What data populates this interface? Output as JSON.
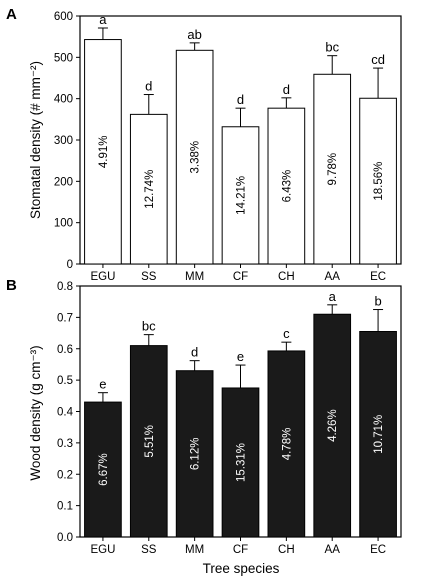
{
  "chart_data": [
    {
      "panel": "A",
      "type": "bar",
      "categories": [
        "EGU",
        "SS",
        "MM",
        "CF",
        "CH",
        "AA",
        "EC"
      ],
      "values": [
        543,
        362,
        517,
        332,
        377,
        459,
        401
      ],
      "errors": [
        28,
        48,
        18,
        45,
        25,
        45,
        73
      ],
      "letters": [
        "a",
        "d",
        "ab",
        "d",
        "d",
        "bc",
        "cd"
      ],
      "inner_labels": [
        "4.91%",
        "12.74%",
        "3.38%",
        "14.21%",
        "6.43%",
        "9.78%",
        "18.56%"
      ],
      "ylabel": "Stomatal density (# mm⁻²)",
      "ylim": [
        0,
        600
      ],
      "yticks": [
        "0",
        "100",
        "200",
        "300",
        "400",
        "500",
        "600"
      ],
      "bar_color": "#ffffff"
    },
    {
      "panel": "B",
      "type": "bar",
      "categories": [
        "EGU",
        "SS",
        "MM",
        "CF",
        "CH",
        "AA",
        "EC"
      ],
      "values": [
        0.43,
        0.61,
        0.53,
        0.475,
        0.593,
        0.71,
        0.655
      ],
      "errors": [
        0.03,
        0.035,
        0.032,
        0.073,
        0.028,
        0.03,
        0.07
      ],
      "letters": [
        "e",
        "bc",
        "d",
        "e",
        "c",
        "a",
        "b"
      ],
      "inner_labels": [
        "6.67%",
        "5.51%",
        "6.12%",
        "15.31%",
        "4.78%",
        "4.26%",
        "10.71%"
      ],
      "ylabel": "Wood density (g cm⁻³)",
      "xlabel": "Tree species",
      "ylim": [
        0,
        0.8
      ],
      "yticks": [
        "0.0",
        "0.1",
        "0.2",
        "0.3",
        "0.4",
        "0.5",
        "0.6",
        "0.7",
        "0.8"
      ],
      "bar_color": "#1a1a1a"
    }
  ]
}
